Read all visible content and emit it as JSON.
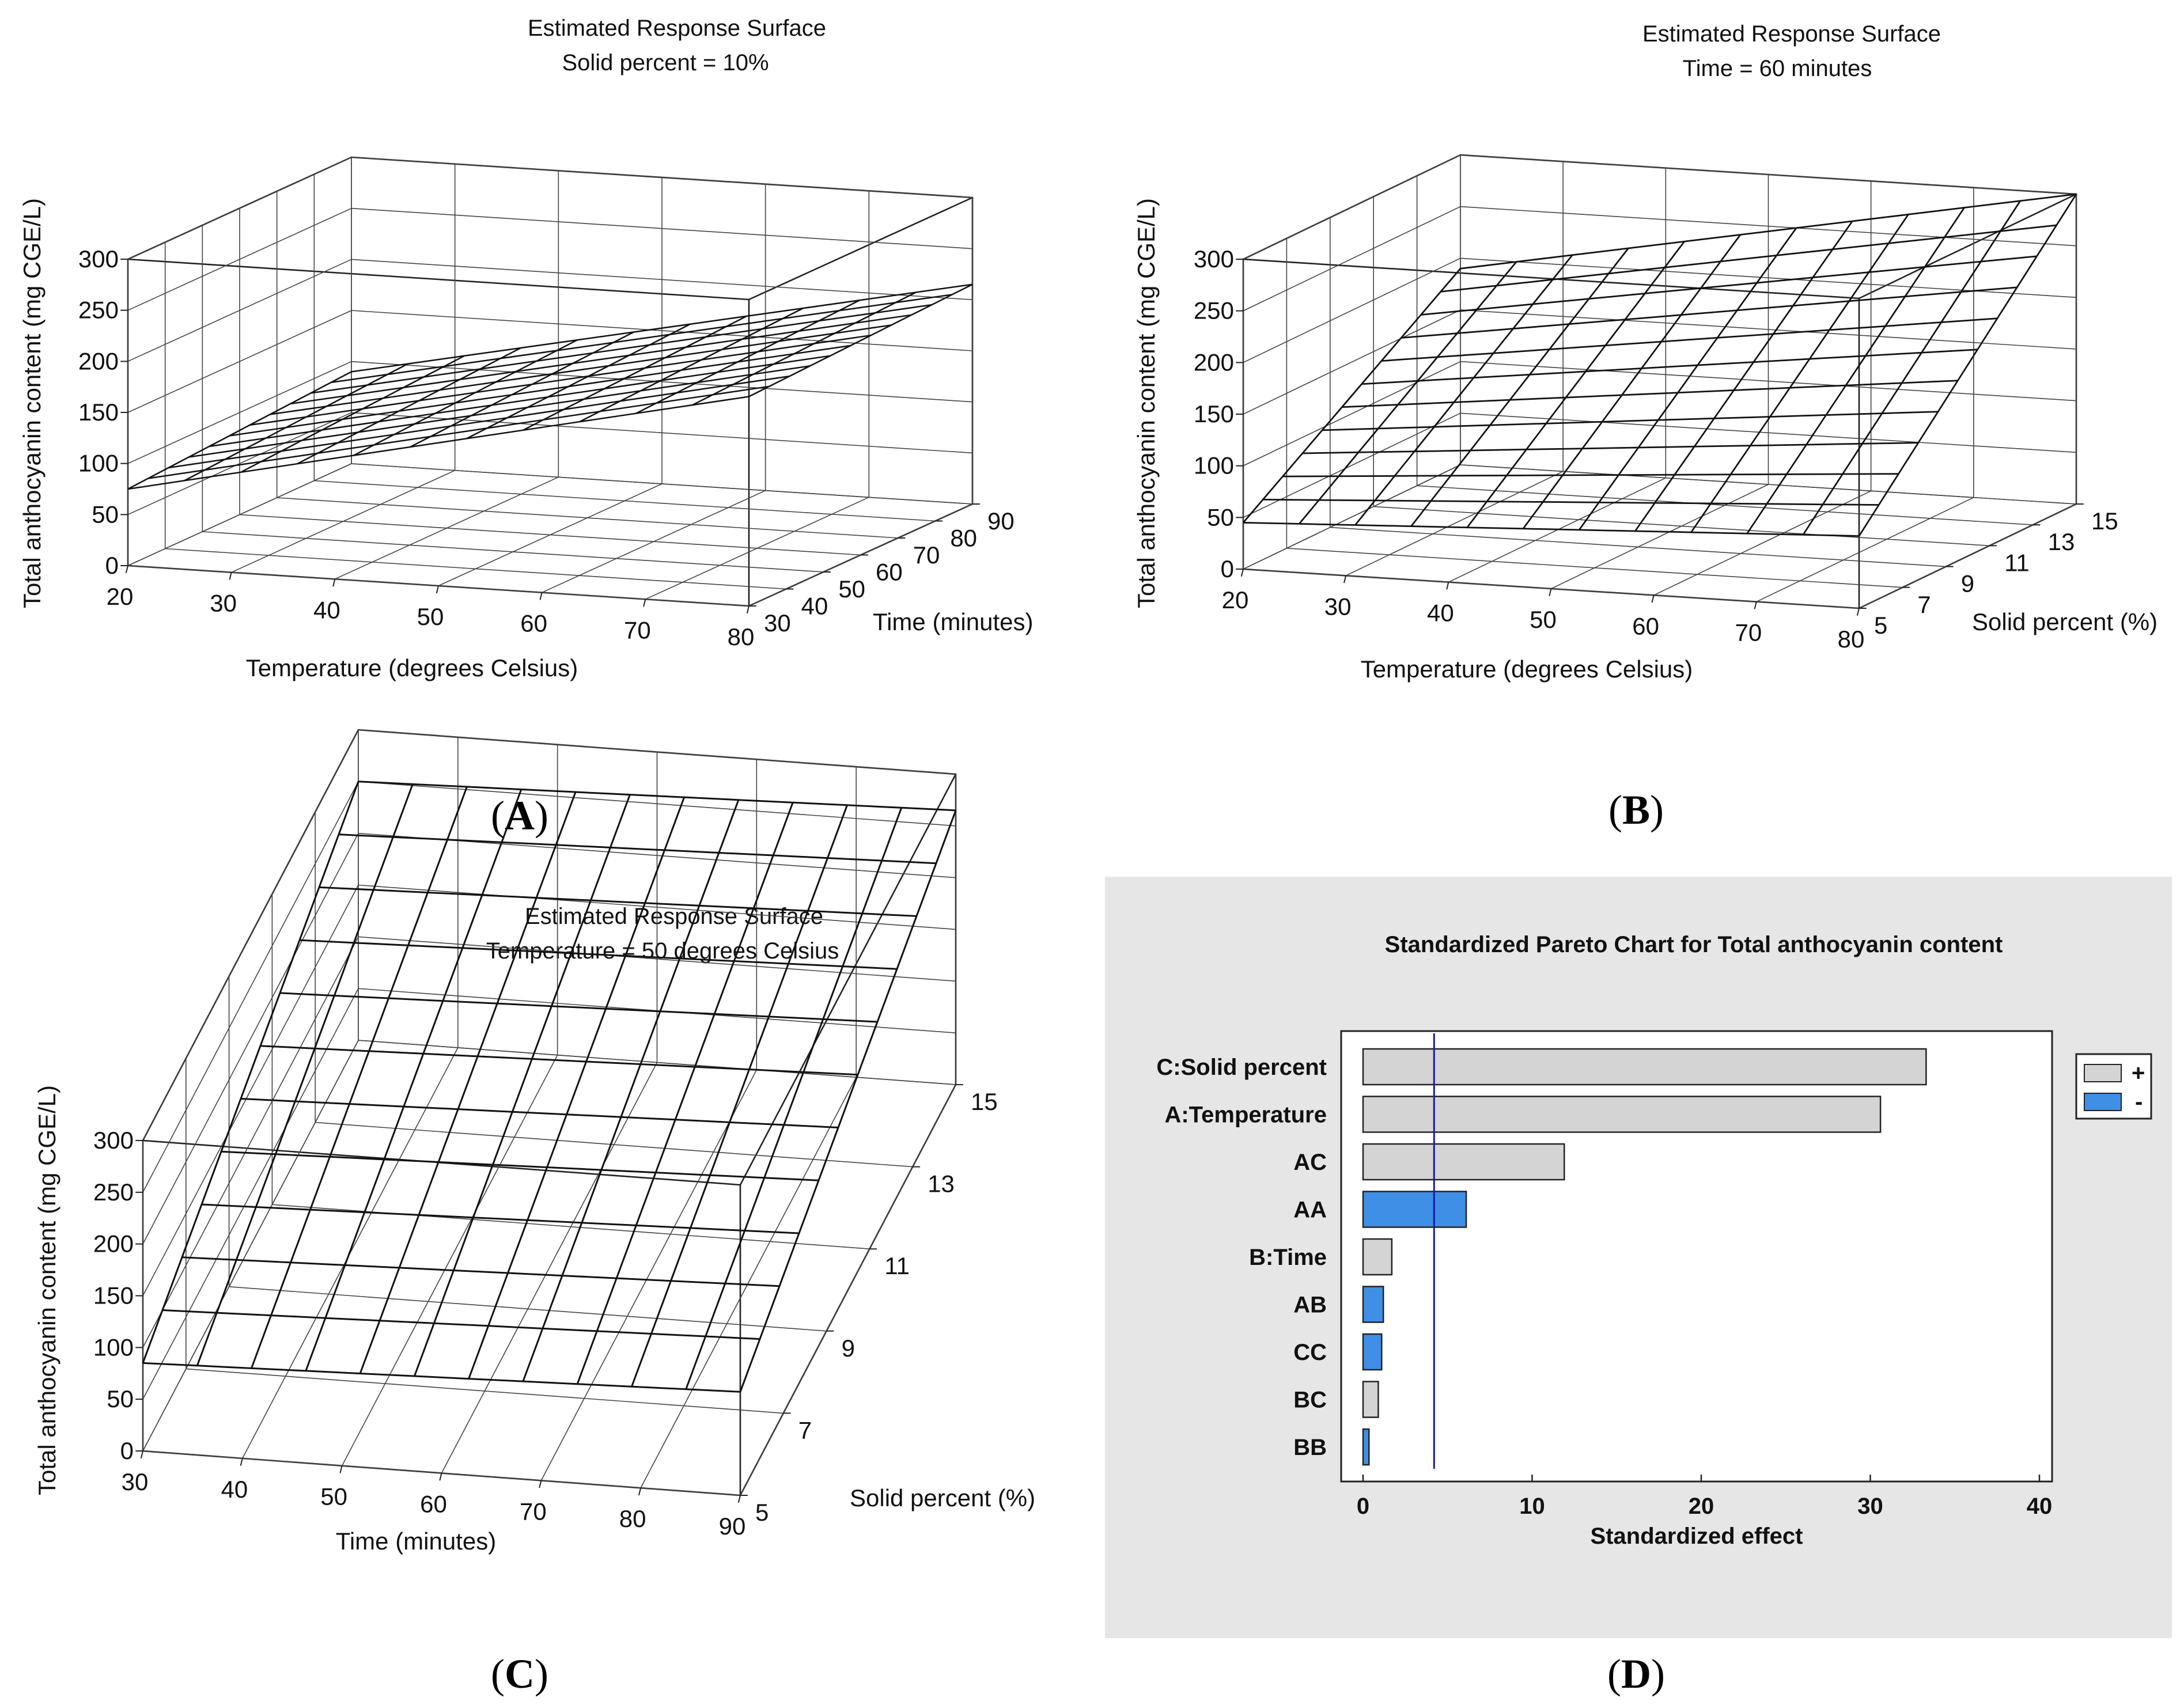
{
  "chart_data": [
    {
      "panel": "(A)",
      "type": "surface3d",
      "title": "Estimated Response Surface",
      "subtitle": "Solid percent = 10%",
      "xlabel": "Temperature (degrees Celsius)",
      "ylabel": "Time (minutes)",
      "zlabel": "Total anthocyanin content (mg CGE/L)",
      "x_ticks": [
        "20",
        "30",
        "40",
        "50",
        "60",
        "70",
        "80"
      ],
      "y_ticks": [
        "30",
        "40",
        "50",
        "60",
        "70",
        "80",
        "90"
      ],
      "z_ticks": [
        "0",
        "50",
        "100",
        "150",
        "200",
        "250",
        "300"
      ],
      "xlim": [
        20,
        80
      ],
      "ylim": [
        30,
        90
      ],
      "zlim": [
        0,
        300
      ],
      "z_corners": {
        "x_min_y_min": 75,
        "x_max_y_min": 205,
        "x_min_y_max": 90,
        "x_max_y_max": 215
      }
    },
    {
      "panel": "(B)",
      "type": "surface3d",
      "title": "Estimated Response Surface",
      "subtitle": "Time = 60 minutes",
      "xlabel": "Temperature (degrees Celsius)",
      "ylabel": "Solid percent (%)",
      "zlabel": "Total anthocyanin content (mg CGE/L)",
      "x_ticks": [
        "20",
        "30",
        "40",
        "50",
        "60",
        "70",
        "80"
      ],
      "y_ticks": [
        "5",
        "7",
        "9",
        "11",
        "13",
        "15"
      ],
      "z_ticks": [
        "0",
        "50",
        "100",
        "150",
        "200",
        "250",
        "300"
      ],
      "xlim": [
        20,
        80
      ],
      "ylim": [
        5,
        15
      ],
      "zlim": [
        0,
        300
      ],
      "z_corners": {
        "x_min_y_min": 45,
        "x_max_y_min": 70,
        "x_min_y_max": 190,
        "x_max_y_max": 300
      }
    },
    {
      "panel": "(C)",
      "type": "surface3d",
      "title": "Estimated Response Surface",
      "subtitle": "Temperature = 50 degrees Celsius",
      "xlabel": "Time (minutes)",
      "ylabel": "Solid percent (%)",
      "zlabel": "Total anthocyanin content (mg CGE/L)",
      "x_ticks": [
        "30",
        "40",
        "50",
        "60",
        "70",
        "80",
        "90"
      ],
      "y_ticks": [
        "5",
        "7",
        "9",
        "11",
        "13",
        "15"
      ],
      "z_ticks": [
        "0",
        "50",
        "100",
        "150",
        "200",
        "250",
        "300"
      ],
      "xlim": [
        30,
        90
      ],
      "ylim": [
        5,
        15
      ],
      "zlim": [
        0,
        300
      ],
      "z_corners": {
        "x_min_y_min": 85,
        "x_max_y_min": 100,
        "x_min_y_max": 250,
        "x_max_y_max": 265
      }
    },
    {
      "panel": "(D)",
      "type": "bar",
      "orientation": "horizontal",
      "title": "Standardized Pareto Chart for Total anthocyanin content",
      "xlabel": "Standardized effect",
      "x_ticks": [
        "0",
        "10",
        "20",
        "30",
        "40"
      ],
      "xlim": [
        0,
        40
      ],
      "reference_line": 4.2,
      "categories": [
        "C:Solid percent",
        "A:Temperature",
        "AC",
        "AA",
        "B:Time",
        "AB",
        "CC",
        "BC",
        "BB"
      ],
      "values": [
        33.3,
        30.6,
        11.9,
        6.1,
        1.7,
        1.2,
        1.1,
        0.9,
        0.35
      ],
      "signs": [
        "+",
        "+",
        "+",
        "-",
        "+",
        "-",
        "-",
        "+",
        "-"
      ],
      "legend": [
        {
          "label": "+",
          "color": "#d4d4d4"
        },
        {
          "label": "-",
          "color": "#3f8fe6"
        }
      ],
      "legend_position": "top-right"
    }
  ],
  "colors": {
    "positive": "#d4d4d4",
    "negative": "#3f8fe6",
    "reference": "#1a1aa8",
    "panel_bg": "#e6e6e6"
  }
}
